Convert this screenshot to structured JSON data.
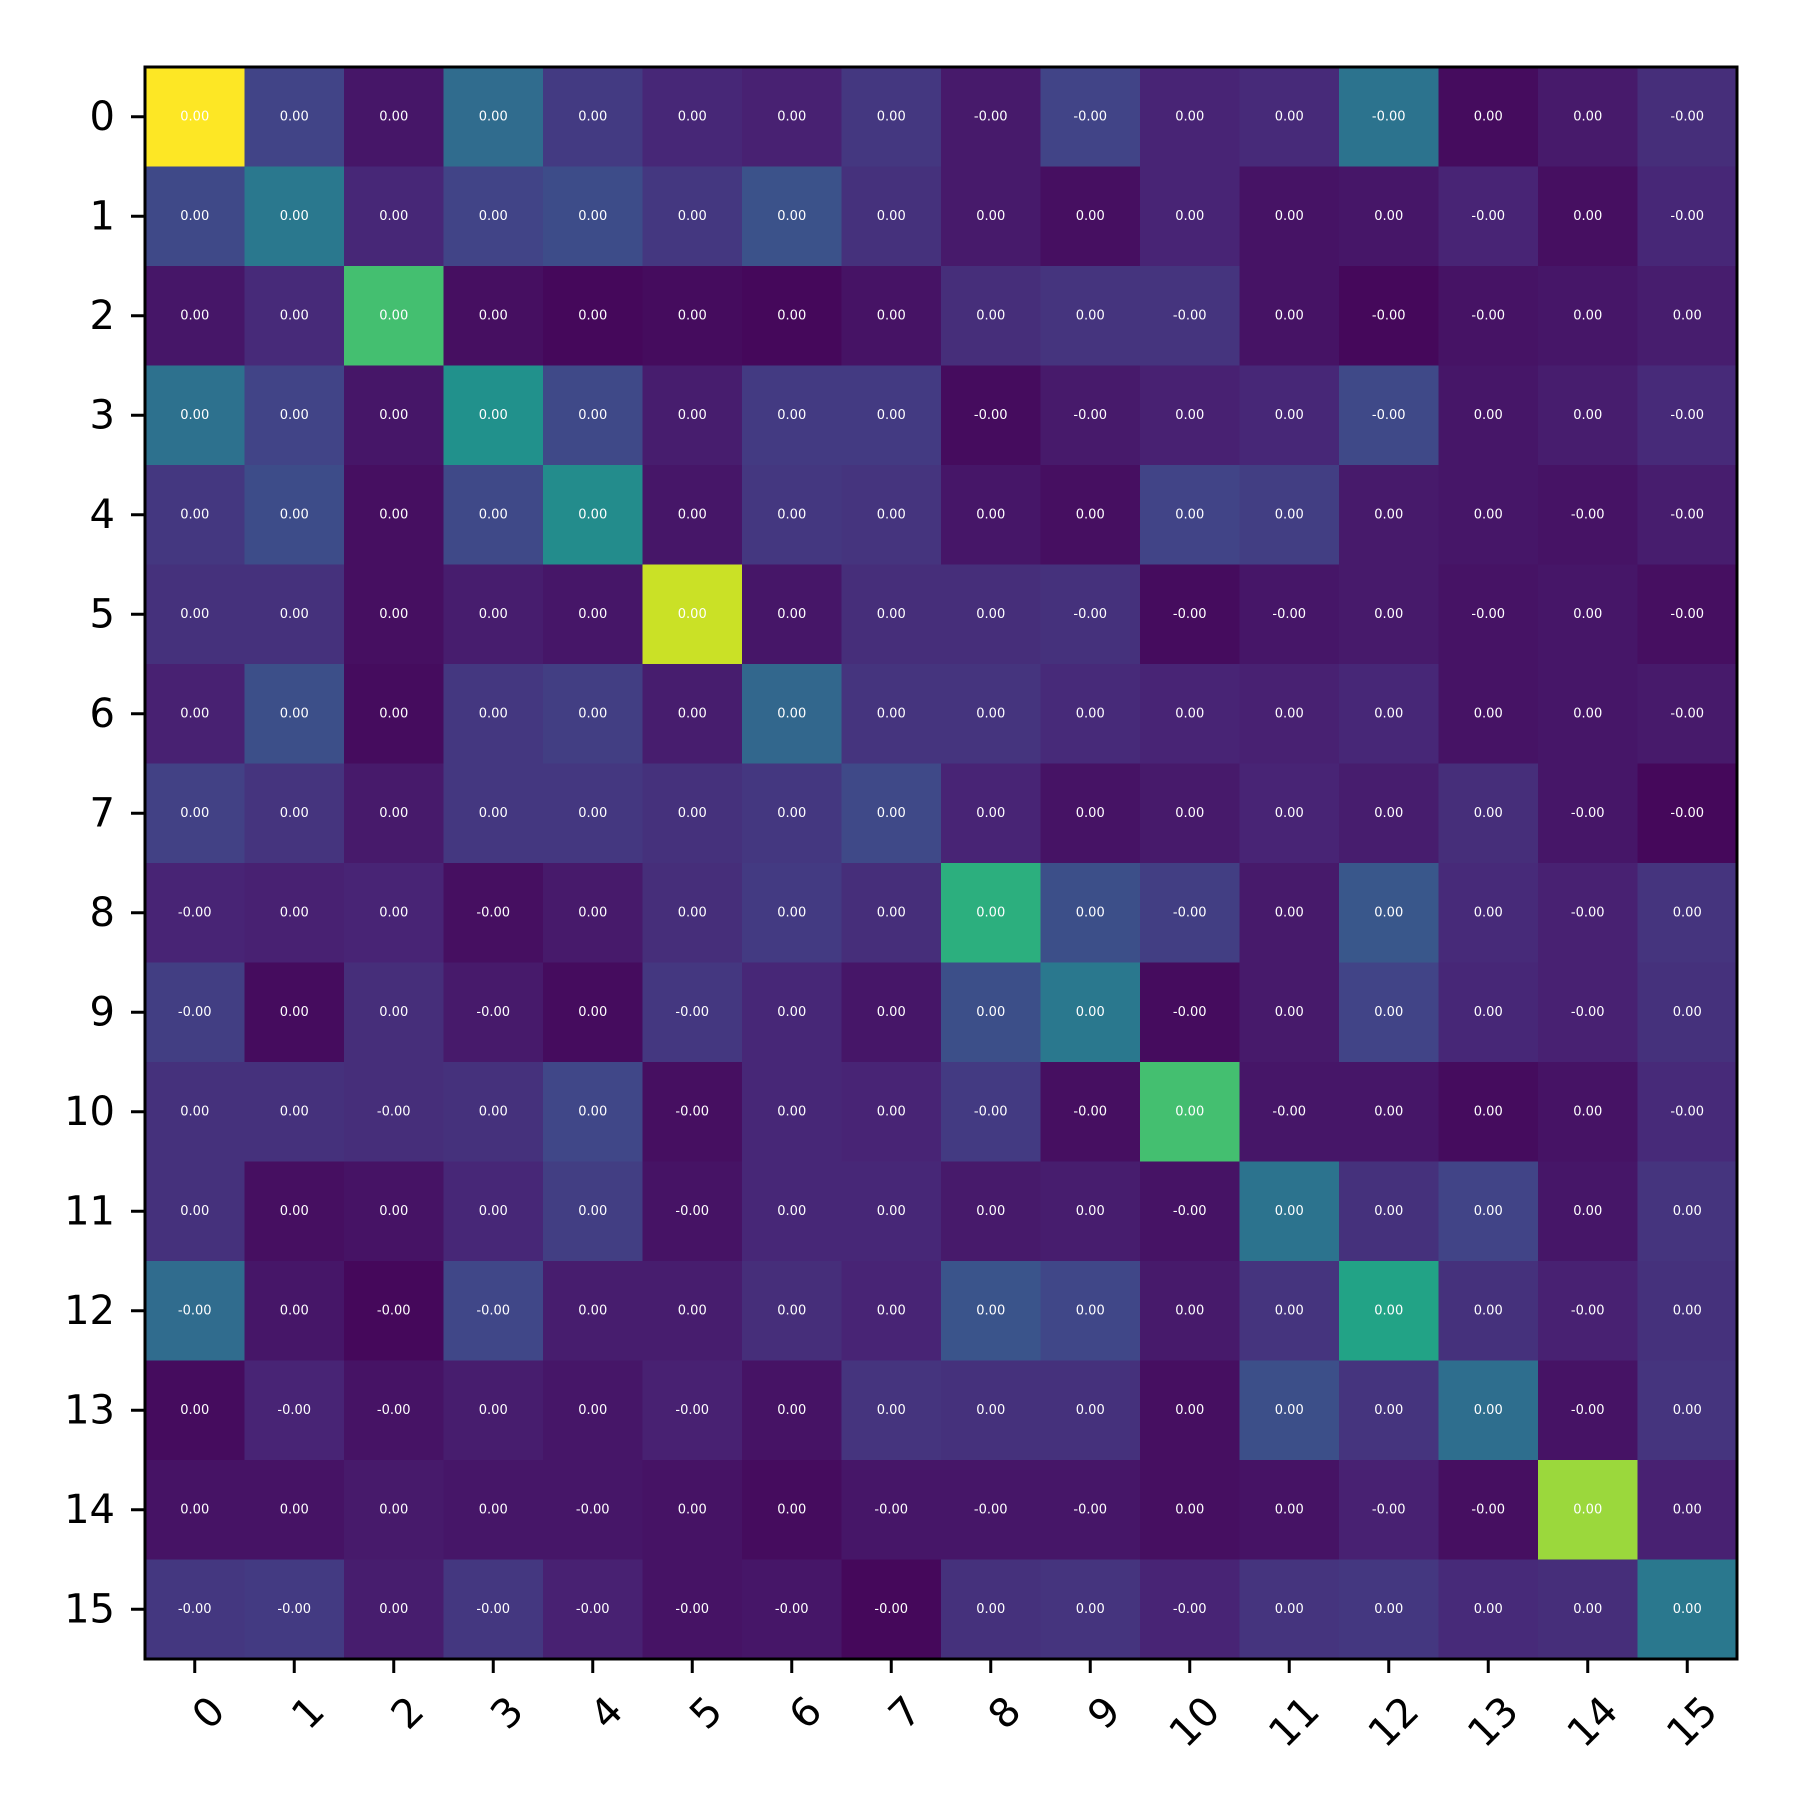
{
  "chart_data": {
    "type": "heatmap",
    "colormap": "viridis",
    "x_labels": [
      "0",
      "1",
      "2",
      "3",
      "4",
      "5",
      "6",
      "7",
      "8",
      "9",
      "10",
      "11",
      "12",
      "13",
      "14",
      "15"
    ],
    "y_labels": [
      "0",
      "1",
      "2",
      "3",
      "4",
      "5",
      "6",
      "7",
      "8",
      "9",
      "10",
      "11",
      "12",
      "13",
      "14",
      "15"
    ],
    "intensity": [
      [
        1.0,
        0.2,
        0.06,
        0.35,
        0.17,
        0.11,
        0.09,
        0.16,
        0.07,
        0.2,
        0.1,
        0.12,
        0.38,
        0.03,
        0.07,
        0.13
      ],
      [
        0.22,
        0.4,
        0.11,
        0.2,
        0.23,
        0.16,
        0.25,
        0.14,
        0.07,
        0.04,
        0.1,
        0.05,
        0.06,
        0.1,
        0.04,
        0.11
      ],
      [
        0.06,
        0.12,
        0.7,
        0.04,
        0.02,
        0.03,
        0.02,
        0.05,
        0.13,
        0.15,
        0.15,
        0.05,
        0.02,
        0.05,
        0.06,
        0.08
      ],
      [
        0.37,
        0.2,
        0.06,
        0.5,
        0.22,
        0.08,
        0.17,
        0.17,
        0.03,
        0.07,
        0.09,
        0.11,
        0.22,
        0.06,
        0.08,
        0.12
      ],
      [
        0.16,
        0.23,
        0.04,
        0.22,
        0.48,
        0.06,
        0.16,
        0.15,
        0.06,
        0.04,
        0.2,
        0.18,
        0.07,
        0.06,
        0.05,
        0.08
      ],
      [
        0.14,
        0.14,
        0.04,
        0.08,
        0.06,
        0.92,
        0.06,
        0.13,
        0.13,
        0.14,
        0.03,
        0.06,
        0.07,
        0.05,
        0.06,
        0.04
      ],
      [
        0.09,
        0.24,
        0.03,
        0.16,
        0.18,
        0.08,
        0.33,
        0.15,
        0.15,
        0.12,
        0.1,
        0.09,
        0.11,
        0.05,
        0.06,
        0.07
      ],
      [
        0.19,
        0.15,
        0.07,
        0.16,
        0.16,
        0.14,
        0.16,
        0.22,
        0.1,
        0.05,
        0.07,
        0.1,
        0.08,
        0.13,
        0.06,
        0.02
      ],
      [
        0.1,
        0.09,
        0.1,
        0.04,
        0.07,
        0.13,
        0.17,
        0.13,
        0.63,
        0.24,
        0.18,
        0.07,
        0.27,
        0.12,
        0.09,
        0.15
      ],
      [
        0.18,
        0.03,
        0.13,
        0.07,
        0.03,
        0.16,
        0.11,
        0.06,
        0.24,
        0.4,
        0.03,
        0.07,
        0.2,
        0.11,
        0.09,
        0.14
      ],
      [
        0.14,
        0.14,
        0.13,
        0.14,
        0.21,
        0.04,
        0.11,
        0.1,
        0.17,
        0.04,
        0.7,
        0.06,
        0.06,
        0.03,
        0.05,
        0.12
      ],
      [
        0.14,
        0.04,
        0.05,
        0.11,
        0.18,
        0.05,
        0.11,
        0.11,
        0.07,
        0.08,
        0.05,
        0.38,
        0.14,
        0.2,
        0.06,
        0.15
      ],
      [
        0.35,
        0.06,
        0.02,
        0.21,
        0.08,
        0.08,
        0.13,
        0.1,
        0.26,
        0.21,
        0.07,
        0.15,
        0.58,
        0.14,
        0.09,
        0.14
      ],
      [
        0.03,
        0.1,
        0.05,
        0.08,
        0.06,
        0.09,
        0.05,
        0.15,
        0.14,
        0.14,
        0.04,
        0.24,
        0.15,
        0.36,
        0.05,
        0.15
      ],
      [
        0.05,
        0.05,
        0.07,
        0.06,
        0.06,
        0.05,
        0.03,
        0.06,
        0.06,
        0.06,
        0.04,
        0.05,
        0.09,
        0.04,
        0.85,
        0.09
      ],
      [
        0.16,
        0.17,
        0.08,
        0.16,
        0.09,
        0.05,
        0.06,
        0.02,
        0.14,
        0.15,
        0.1,
        0.15,
        0.16,
        0.12,
        0.13,
        0.4
      ]
    ],
    "cell_text": [
      [
        "0.00",
        "0.00",
        "0.00",
        "0.00",
        "0.00",
        "0.00",
        "0.00",
        "0.00",
        "-0.00",
        "-0.00",
        "0.00",
        "0.00",
        "-0.00",
        "0.00",
        "0.00",
        "-0.00"
      ],
      [
        "0.00",
        "0.00",
        "0.00",
        "0.00",
        "0.00",
        "0.00",
        "0.00",
        "0.00",
        "0.00",
        "0.00",
        "0.00",
        "0.00",
        "0.00",
        "-0.00",
        "0.00",
        "-0.00"
      ],
      [
        "0.00",
        "0.00",
        "0.00",
        "0.00",
        "0.00",
        "0.00",
        "0.00",
        "0.00",
        "0.00",
        "0.00",
        "-0.00",
        "0.00",
        "-0.00",
        "-0.00",
        "0.00",
        "0.00"
      ],
      [
        "0.00",
        "0.00",
        "0.00",
        "0.00",
        "0.00",
        "0.00",
        "0.00",
        "0.00",
        "-0.00",
        "-0.00",
        "0.00",
        "0.00",
        "-0.00",
        "0.00",
        "0.00",
        "-0.00"
      ],
      [
        "0.00",
        "0.00",
        "0.00",
        "0.00",
        "0.00",
        "0.00",
        "0.00",
        "0.00",
        "0.00",
        "0.00",
        "0.00",
        "0.00",
        "0.00",
        "0.00",
        "-0.00",
        "-0.00"
      ],
      [
        "0.00",
        "0.00",
        "0.00",
        "0.00",
        "0.00",
        "0.00",
        "0.00",
        "0.00",
        "0.00",
        "-0.00",
        "-0.00",
        "-0.00",
        "0.00",
        "-0.00",
        "0.00",
        "-0.00"
      ],
      [
        "0.00",
        "0.00",
        "0.00",
        "0.00",
        "0.00",
        "0.00",
        "0.00",
        "0.00",
        "0.00",
        "0.00",
        "0.00",
        "0.00",
        "0.00",
        "0.00",
        "0.00",
        "-0.00"
      ],
      [
        "0.00",
        "0.00",
        "0.00",
        "0.00",
        "0.00",
        "0.00",
        "0.00",
        "0.00",
        "0.00",
        "0.00",
        "0.00",
        "0.00",
        "0.00",
        "0.00",
        "-0.00",
        "-0.00"
      ],
      [
        "-0.00",
        "0.00",
        "0.00",
        "-0.00",
        "0.00",
        "0.00",
        "0.00",
        "0.00",
        "0.00",
        "0.00",
        "-0.00",
        "0.00",
        "0.00",
        "0.00",
        "-0.00",
        "0.00"
      ],
      [
        "-0.00",
        "0.00",
        "0.00",
        "-0.00",
        "0.00",
        "-0.00",
        "0.00",
        "0.00",
        "0.00",
        "0.00",
        "-0.00",
        "0.00",
        "0.00",
        "0.00",
        "-0.00",
        "0.00"
      ],
      [
        "0.00",
        "0.00",
        "-0.00",
        "0.00",
        "0.00",
        "-0.00",
        "0.00",
        "0.00",
        "-0.00",
        "-0.00",
        "0.00",
        "-0.00",
        "0.00",
        "0.00",
        "0.00",
        "-0.00"
      ],
      [
        "0.00",
        "0.00",
        "0.00",
        "0.00",
        "0.00",
        "-0.00",
        "0.00",
        "0.00",
        "0.00",
        "0.00",
        "-0.00",
        "0.00",
        "0.00",
        "0.00",
        "0.00",
        "0.00"
      ],
      [
        "-0.00",
        "0.00",
        "-0.00",
        "-0.00",
        "0.00",
        "0.00",
        "0.00",
        "0.00",
        "0.00",
        "0.00",
        "0.00",
        "0.00",
        "0.00",
        "0.00",
        "-0.00",
        "0.00"
      ],
      [
        "0.00",
        "-0.00",
        "-0.00",
        "0.00",
        "0.00",
        "-0.00",
        "0.00",
        "0.00",
        "0.00",
        "0.00",
        "0.00",
        "0.00",
        "0.00",
        "0.00",
        "-0.00",
        "0.00"
      ],
      [
        "0.00",
        "0.00",
        "0.00",
        "0.00",
        "-0.00",
        "0.00",
        "0.00",
        "-0.00",
        "-0.00",
        "-0.00",
        "0.00",
        "0.00",
        "-0.00",
        "-0.00",
        "0.00",
        "0.00"
      ],
      [
        "-0.00",
        "-0.00",
        "0.00",
        "-0.00",
        "-0.00",
        "-0.00",
        "-0.00",
        "-0.00",
        "0.00",
        "0.00",
        "-0.00",
        "0.00",
        "0.00",
        "0.00",
        "0.00",
        "0.00"
      ]
    ],
    "title": "",
    "xlabel": "",
    "ylabel": "",
    "colorbar": false
  }
}
